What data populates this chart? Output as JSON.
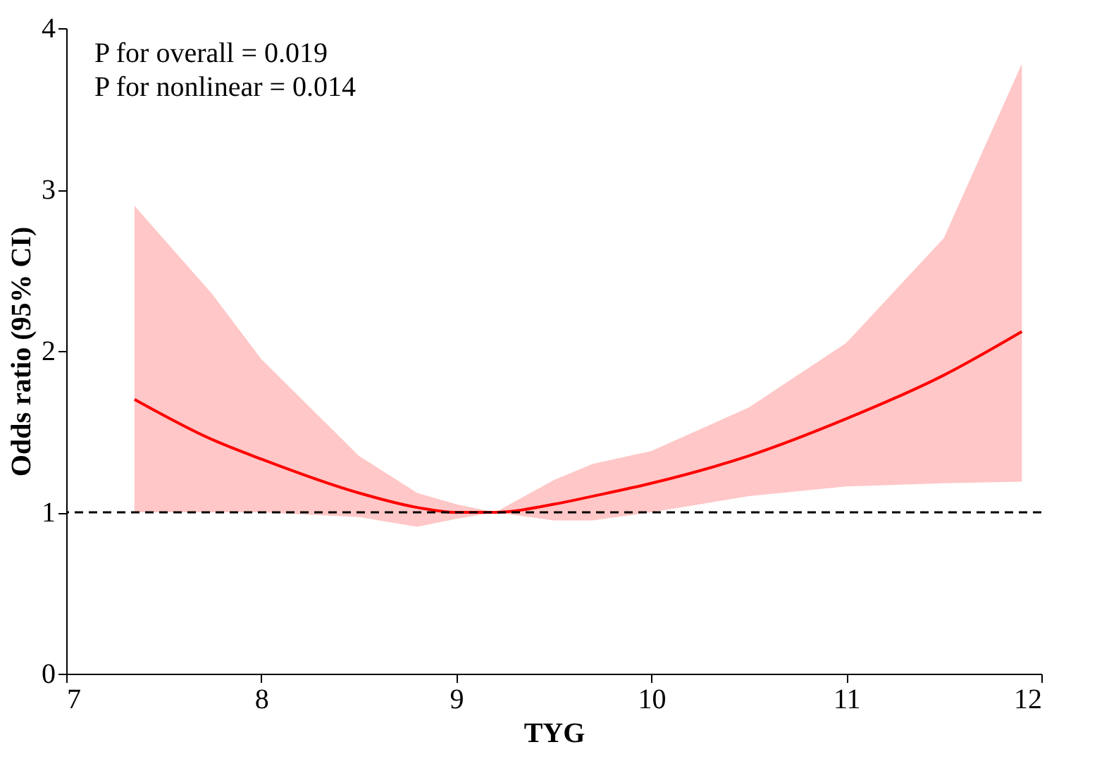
{
  "chart_data": {
    "type": "line",
    "xlabel": "TYG",
    "ylabel": "Odds ratio (95% CI)",
    "annotations": [
      "P for overall = 0.019",
      "P for nonlinear = 0.014"
    ],
    "x": [
      7.35,
      7.75,
      8,
      8.5,
      8.8,
      9,
      9.2,
      9.5,
      9.7,
      10,
      10.5,
      11,
      11.5,
      11.9
    ],
    "series": [
      {
        "color": "#ff0000",
        "values": [
          1.7,
          1.45,
          1.33,
          1.12,
          1.03,
          1.0,
          1.0,
          1.05,
          1.1,
          1.18,
          1.35,
          1.58,
          1.85,
          2.12
        ],
        "lower": [
          1.0,
          1.0,
          1.0,
          0.97,
          0.91,
          0.96,
          1.0,
          0.95,
          0.95,
          1.0,
          1.1,
          1.16,
          1.18,
          1.19
        ],
        "upper": [
          2.9,
          2.35,
          1.95,
          1.35,
          1.12,
          1.05,
          1.0,
          1.2,
          1.3,
          1.38,
          1.65,
          2.05,
          2.7,
          3.78
        ]
      }
    ],
    "xlim": [
      7,
      12
    ],
    "xticks": [
      7,
      8,
      9,
      10,
      11,
      12
    ],
    "ylim": [
      0,
      4
    ],
    "yticks": [
      0,
      1,
      2,
      3,
      4
    ],
    "ref_lines": [
      {
        "axis": "y",
        "value": 1,
        "line_style": "dashed",
        "color": "#000000"
      }
    ],
    "line_style": "solid",
    "marker": "none"
  }
}
